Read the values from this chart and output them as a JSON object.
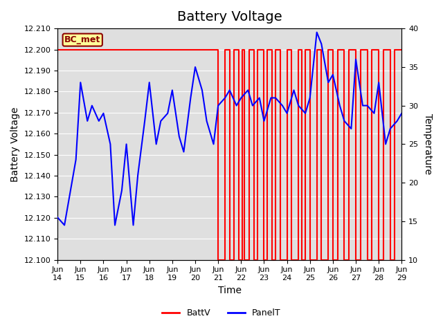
{
  "title": "Battery Voltage",
  "xlabel": "Time",
  "ylabel_left": "Battery Voltage",
  "ylabel_right": "Temperature",
  "ylim_left": [
    12.1,
    12.21
  ],
  "ylim_right": [
    10,
    40
  ],
  "xlim": [
    0,
    15
  ],
  "xtick_positions": [
    0,
    1,
    2,
    3,
    4,
    5,
    6,
    7,
    8,
    9,
    10,
    11,
    12,
    13,
    14,
    15
  ],
  "xtick_labels": [
    "Jun\n14",
    "Jun\n15",
    "Jun\n16",
    "Jun\n17",
    "Jun\n18",
    "Jun\n19",
    "Jun\n20",
    "Jun\n21",
    "Jun\n22",
    "Jun\n23",
    "Jun\n24",
    "Jun\n25",
    "Jun\n26",
    "Jun\n27",
    "Jun\n28",
    "Jun\n29"
  ],
  "legend_labels": [
    "BattV",
    "PanelT"
  ],
  "legend_colors": [
    "red",
    "blue"
  ],
  "bc_met_label": "BC_met",
  "background_color": "#e8e8e8",
  "shaded_region_color": "#d0d0d0",
  "title_fontsize": 14,
  "axis_fontsize": 10,
  "tick_fontsize": 8,
  "batt_v_high": 12.2,
  "batt_v_low": 12.1,
  "batt_v_data_x": [
    0,
    7.0,
    7.0,
    7.3,
    7.3,
    7.5,
    7.5,
    7.7,
    7.7,
    7.9,
    7.9,
    8.05,
    8.05,
    8.15,
    8.15,
    8.35,
    8.35,
    8.55,
    8.55,
    8.7,
    8.7,
    9.0,
    9.0,
    9.15,
    9.15,
    9.35,
    9.35,
    9.5,
    9.5,
    9.7,
    9.7,
    10.0,
    10.0,
    10.2,
    10.2,
    10.5,
    10.5,
    10.65,
    10.65,
    10.8,
    10.8,
    11.0,
    11.0,
    11.3,
    11.3,
    11.5,
    11.5,
    11.8,
    11.8,
    12.0,
    12.0,
    12.2,
    12.2,
    12.5,
    12.5,
    12.7,
    12.7,
    13.0,
    13.0,
    13.2,
    13.2,
    13.5,
    13.5,
    13.7,
    13.7,
    14.0,
    14.0,
    14.2,
    14.2,
    14.5,
    14.5,
    14.7,
    14.7,
    15.0
  ],
  "batt_v_data_y": [
    12.2,
    12.2,
    12.1,
    12.1,
    12.2,
    12.2,
    12.1,
    12.1,
    12.2,
    12.2,
    12.1,
    12.1,
    12.2,
    12.2,
    12.1,
    12.1,
    12.2,
    12.2,
    12.1,
    12.1,
    12.2,
    12.2,
    12.1,
    12.1,
    12.2,
    12.2,
    12.1,
    12.1,
    12.2,
    12.2,
    12.1,
    12.1,
    12.2,
    12.2,
    12.1,
    12.1,
    12.2,
    12.2,
    12.1,
    12.1,
    12.2,
    12.2,
    12.1,
    12.1,
    12.2,
    12.2,
    12.1,
    12.1,
    12.2,
    12.2,
    12.1,
    12.1,
    12.2,
    12.2,
    12.1,
    12.1,
    12.2,
    12.2,
    12.1,
    12.1,
    12.2,
    12.2,
    12.1,
    12.1,
    12.2,
    12.2,
    12.1,
    12.1,
    12.2,
    12.2,
    12.1,
    12.1,
    12.2,
    12.2
  ],
  "panel_t_data_x": [
    0,
    0.3,
    0.8,
    1.0,
    1.3,
    1.5,
    1.8,
    2.0,
    2.3,
    2.5,
    2.8,
    3.0,
    3.3,
    3.5,
    3.8,
    4.0,
    4.3,
    4.5,
    4.8,
    5.0,
    5.3,
    5.5,
    5.8,
    6.0,
    6.3,
    6.5,
    6.8,
    7.0,
    7.3,
    7.5,
    7.8,
    8.0,
    8.3,
    8.5,
    8.8,
    9.0,
    9.3,
    9.5,
    9.8,
    10.0,
    10.3,
    10.5,
    10.8,
    11.0,
    11.3,
    11.5,
    11.8,
    12.0,
    12.3,
    12.5,
    12.8,
    13.0,
    13.3,
    13.5,
    13.8,
    14.0,
    14.3,
    14.5,
    14.8,
    15.0
  ],
  "panel_t_data_y": [
    15.5,
    14.5,
    23,
    33,
    28,
    30,
    28,
    29,
    25,
    14.5,
    19,
    25,
    14.5,
    21,
    28,
    33,
    25,
    28,
    29,
    32,
    26,
    24,
    31,
    35,
    32,
    28,
    25,
    30,
    31,
    32,
    30,
    31,
    32,
    30,
    31,
    28,
    31,
    31,
    30,
    29,
    32,
    30,
    29,
    31,
    39.5,
    38,
    33,
    34,
    30,
    28,
    27,
    36,
    30,
    30,
    29,
    33,
    25,
    27,
    28,
    29
  ]
}
